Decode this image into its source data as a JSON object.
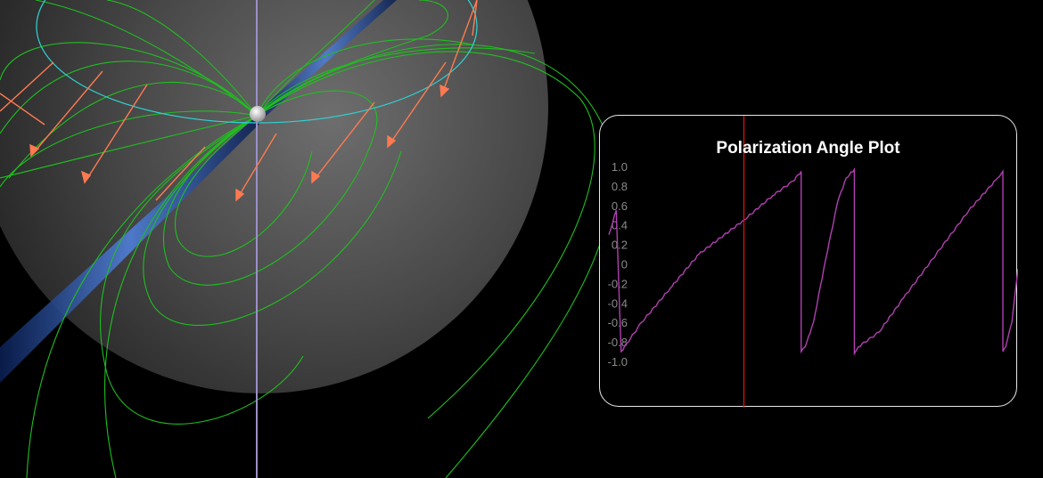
{
  "plot": {
    "title": "Polarization Angle Plot"
  },
  "colors": {
    "background": "#000000",
    "sphere": "#5a5a5a",
    "field_lines": "#1fbf1f",
    "cyan_ring": "#2fd4d4",
    "arrows": "#ff7a50",
    "beam": "#3060c0",
    "axis_line": "#9b8fc8",
    "plot_trace": "#b040b0",
    "plot_cursor": "#e01010",
    "panel_border": "#e8e8e8"
  },
  "chart_data": {
    "type": "line",
    "title": "Polarization Angle Plot",
    "xlabel": "",
    "ylabel": "",
    "ylim": [
      -1.0,
      1.0
    ],
    "yticks": [
      "1.0",
      "0.8",
      "0.6",
      "0.4",
      "0.2",
      "0",
      "-0.2",
      "-0.4",
      "-0.6",
      "-0.8",
      "-1.0"
    ],
    "grid": false,
    "xlim": [
      0,
      1
    ],
    "cursor_x": 0.33,
    "series": [
      {
        "x": [
          0.0,
          0.018,
          0.03,
          0.08,
          0.15,
          0.22,
          0.33,
          0.4,
          0.45,
          0.47,
          0.47,
          0.48,
          0.5,
          0.53,
          0.56,
          0.58,
          0.6,
          0.6,
          0.61,
          0.66,
          0.72,
          0.8,
          0.88,
          0.95,
          0.963,
          0.963,
          0.97,
          0.985,
          1.0
        ],
        "y": [
          0.3,
          0.55,
          -0.9,
          -0.6,
          -0.25,
          0.1,
          0.45,
          0.7,
          0.85,
          0.95,
          -0.9,
          -0.85,
          -0.6,
          0.05,
          0.65,
          0.88,
          0.97,
          -0.92,
          -0.85,
          -0.7,
          -0.35,
          0.1,
          0.55,
          0.88,
          0.95,
          -0.9,
          -0.85,
          -0.6,
          -0.05
        ]
      }
    ]
  },
  "icons": {
    "sphere_marker": "white-sphere-marker-icon"
  }
}
